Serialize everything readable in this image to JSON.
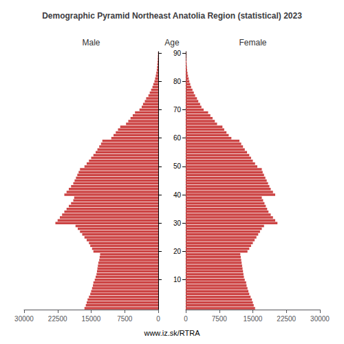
{
  "chart_data": {
    "type": "bar",
    "orientation": "horizontal",
    "title": "Demographic Pyramid Northeast Anatolia Region (statistical) 2023",
    "ylabel": "Age",
    "annotations": [
      "www.iz.sk/RTRA"
    ],
    "categories": [
      null,
      null,
      null,
      null,
      null,
      null,
      null,
      null,
      null,
      null,
      "10",
      null,
      null,
      null,
      null,
      null,
      null,
      null,
      null,
      null,
      "20",
      null,
      null,
      null,
      null,
      null,
      null,
      null,
      null,
      null,
      "30",
      null,
      null,
      null,
      null,
      null,
      null,
      null,
      null,
      null,
      "40",
      null,
      null,
      null,
      null,
      null,
      null,
      null,
      null,
      null,
      "50",
      null,
      null,
      null,
      null,
      null,
      null,
      null,
      null,
      null,
      "60",
      null,
      null,
      null,
      null,
      null,
      null,
      null,
      null,
      null,
      "70",
      null,
      null,
      null,
      null,
      null,
      null,
      null,
      null,
      null,
      "80",
      null,
      null,
      null,
      null,
      null,
      null,
      null,
      null,
      null,
      "90"
    ],
    "series": [
      {
        "name": "Male",
        "color": "#CC4444",
        "values": [
          16500,
          16200,
          16000,
          15800,
          15500,
          15200,
          15000,
          14800,
          14600,
          14500,
          14200,
          14000,
          13800,
          13700,
          13600,
          13500,
          13400,
          13200,
          13100,
          13000,
          14500,
          14800,
          15200,
          15500,
          16000,
          16500,
          17000,
          17500,
          18000,
          18500,
          23000,
          22500,
          22000,
          21500,
          21000,
          20500,
          20000,
          19500,
          19000,
          18800,
          21000,
          20500,
          20000,
          19500,
          19000,
          18700,
          18400,
          18100,
          17800,
          17500,
          16500,
          16000,
          15500,
          15000,
          14500,
          14000,
          13600,
          13200,
          12800,
          12500,
          10500,
          10000,
          9500,
          9000,
          8500,
          7200,
          6700,
          6200,
          5700,
          5200,
          4200,
          3700,
          3400,
          3000,
          2700,
          2200,
          1900,
          1600,
          1300,
          1100,
          850,
          700,
          550,
          430,
          320,
          260,
          210,
          160,
          110,
          75,
          55
        ]
      },
      {
        "name": "Female",
        "color": "#CC4444",
        "values": [
          15500,
          15200,
          15000,
          14800,
          14500,
          14200,
          14000,
          13800,
          13600,
          13500,
          13200,
          13000,
          12900,
          12800,
          12700,
          12600,
          12500,
          12400,
          12300,
          12200,
          13800,
          14200,
          14600,
          15000,
          15400,
          15800,
          16200,
          16600,
          17000,
          17500,
          20500,
          20000,
          19500,
          19000,
          18500,
          18200,
          17900,
          17600,
          17300,
          17000,
          20000,
          19500,
          19000,
          18700,
          18400,
          18100,
          17800,
          17500,
          17200,
          17000,
          16000,
          15500,
          15000,
          14600,
          14200,
          13700,
          13200,
          12800,
          12400,
          12000,
          10200,
          9600,
          9100,
          8600,
          8200,
          7000,
          6500,
          6000,
          5500,
          5000,
          4000,
          3500,
          3200,
          2800,
          2500,
          2100,
          1800,
          1500,
          1200,
          1000,
          800,
          650,
          510,
          400,
          300,
          250,
          200,
          155,
          105,
          70,
          50
        ]
      }
    ],
    "xlim": [
      0,
      30000
    ],
    "xticks": [
      0,
      7500,
      15000,
      22500,
      30000
    ],
    "grid": false
  }
}
